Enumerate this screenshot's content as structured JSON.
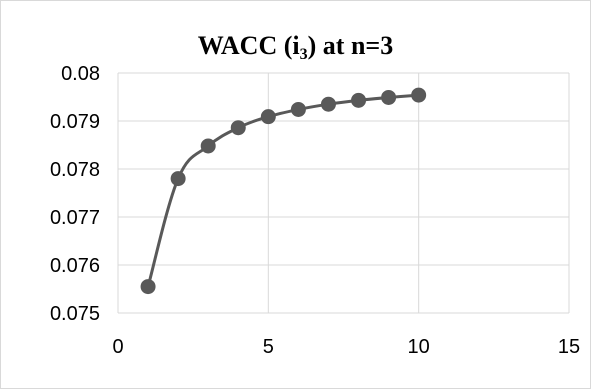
{
  "chart_data": {
    "type": "scatter",
    "title": {
      "prefix": "WACC (i",
      "subscript": "3",
      "suffix": ") at n=3"
    },
    "x": [
      1,
      2,
      3,
      4,
      5,
      6,
      7,
      8,
      9,
      10
    ],
    "series": [
      {
        "values": [
          0.07555,
          0.0778,
          0.07848,
          0.07886,
          0.07909,
          0.07924,
          0.07935,
          0.07943,
          0.07949,
          0.07954
        ],
        "color": "#595959",
        "marker": "circle",
        "line": "smooth"
      }
    ],
    "xlim": [
      0,
      15
    ],
    "ylim": [
      0.075,
      0.08
    ],
    "x_ticks": [
      "0",
      "5",
      "10",
      "15"
    ],
    "y_ticks": [
      "0.075",
      "0.076",
      "0.077",
      "0.078",
      "0.079",
      "0.08"
    ],
    "grid": true
  }
}
